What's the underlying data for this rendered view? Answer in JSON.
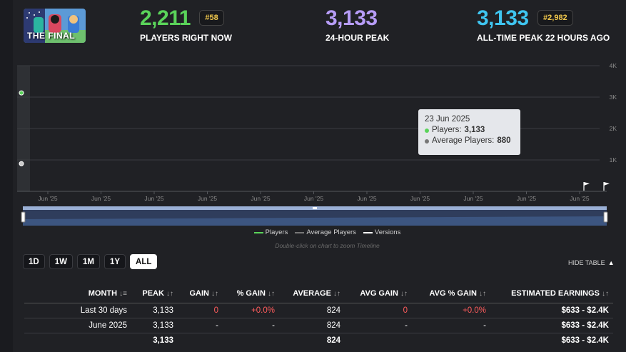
{
  "game": {
    "thumb_title": "THE FINAL"
  },
  "stats": {
    "current": {
      "value": "2,211",
      "label": "PLAYERS RIGHT NOW",
      "rank": "#58",
      "color": "#5ad35a"
    },
    "peak24": {
      "value": "3,133",
      "label": "24-HOUR PEAK",
      "color": "#b69cf7"
    },
    "alltime": {
      "value": "3,133",
      "label": "ALL-TIME PEAK 22 HOURS AGO",
      "rank": "#2,982",
      "color": "#3fc5f0"
    }
  },
  "chart": {
    "y_ticks": [
      "4K",
      "3K",
      "2K",
      "1K"
    ],
    "x_ticks": [
      "Jun '25",
      "Jun '25",
      "Jun '25",
      "Jun '25",
      "Jun '25",
      "Jun '25",
      "Jun '25",
      "Jun '25",
      "Jun '25",
      "Jun '25",
      "Jun '25"
    ],
    "tooltip": {
      "date": "23 Jun 2025",
      "players_label": "Players:",
      "players_value": "3,133",
      "avg_label": "Average Players:",
      "avg_value": "880"
    },
    "legend": [
      "Players",
      "Average Players",
      "Versions"
    ],
    "hint": "Double-click on chart to zoom Timeline"
  },
  "chart_data": {
    "type": "line",
    "title": "",
    "xlabel": "",
    "ylabel": "",
    "ylim": [
      0,
      4000
    ],
    "x": [
      "23 Jun 2025"
    ],
    "series": [
      {
        "name": "Players",
        "values": [
          3133
        ],
        "color": "#5ad35a"
      },
      {
        "name": "Average Players",
        "values": [
          880
        ],
        "color": "#cccccc"
      }
    ]
  },
  "ranges": [
    "1D",
    "1W",
    "1M",
    "1Y",
    "ALL"
  ],
  "hide_table": "HIDE TABLE",
  "table": {
    "headers": {
      "month": "MONTH",
      "peak": "PEAK",
      "gain": "GAIN",
      "pgain": "% GAIN",
      "average": "AVERAGE",
      "avggain": "AVG GAIN",
      "avgpgain": "AVG % GAIN",
      "earnings": "ESTIMATED EARNINGS"
    },
    "rows": [
      {
        "month": "Last 30 days",
        "peak": "3,133",
        "gain": "0",
        "pgain": "+0.0%",
        "average": "824",
        "avggain": "0",
        "avgpgain": "+0.0%",
        "earnings": "$633  -  $2.4K"
      },
      {
        "month": "June 2025",
        "peak": "3,133",
        "gain": "-",
        "pgain": "-",
        "average": "824",
        "avggain": "-",
        "avgpgain": "-",
        "earnings": "$633  -  $2.4K"
      },
      {
        "month": "",
        "peak": "3,133",
        "gain": "",
        "pgain": "",
        "average": "824",
        "avggain": "",
        "avgpgain": "",
        "earnings": "$633  -  $2.4K"
      }
    ]
  }
}
